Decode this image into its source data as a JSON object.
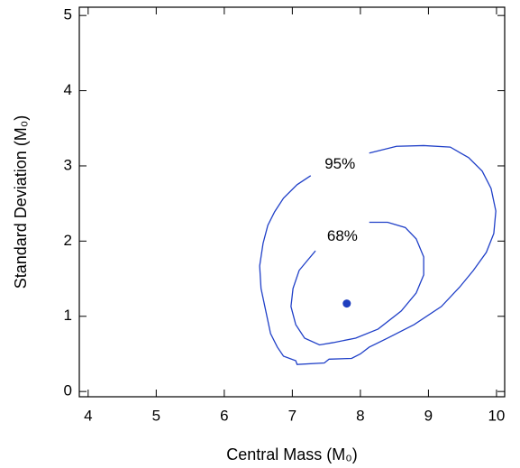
{
  "chart_data": {
    "type": "contour",
    "xlabel": "Central Mass (M₀)",
    "ylabel": "Standard Deviation (M₀)",
    "xlim": [
      3.87,
      10.12
    ],
    "ylim": [
      -0.07,
      5.11
    ],
    "xticks": [
      4,
      5,
      6,
      7,
      8,
      9,
      10
    ],
    "yticks": [
      0,
      1,
      2,
      3,
      4,
      5
    ],
    "series": [
      {
        "name": "95%",
        "color": "#2040c8",
        "x": [
          8.13,
          8.53,
          8.93,
          9.32,
          9.59,
          9.79,
          9.92,
          9.99,
          9.96,
          9.85,
          9.66,
          9.46,
          9.19,
          8.79,
          8.4,
          8.13,
          8.0,
          7.87,
          7.54,
          7.47,
          7.07,
          7.05,
          6.87,
          6.78,
          6.68,
          6.61,
          6.54,
          6.52,
          6.57,
          6.64,
          6.74,
          6.87,
          7.07,
          7.27
        ],
        "values": [
          3.17,
          3.26,
          3.27,
          3.25,
          3.11,
          2.93,
          2.7,
          2.4,
          2.1,
          1.85,
          1.61,
          1.39,
          1.13,
          0.89,
          0.71,
          0.59,
          0.5,
          0.44,
          0.43,
          0.38,
          0.36,
          0.41,
          0.47,
          0.59,
          0.77,
          1.07,
          1.37,
          1.67,
          1.97,
          2.21,
          2.39,
          2.57,
          2.75,
          2.87
        ]
      },
      {
        "name": "68%",
        "color": "#2040c8",
        "x": [
          8.13,
          8.4,
          8.66,
          8.82,
          8.93,
          8.93,
          8.82,
          8.6,
          8.26,
          7.93,
          7.6,
          7.4,
          7.18,
          7.05,
          6.98,
          7.01,
          7.1,
          7.21,
          7.34
        ],
        "values": [
          2.25,
          2.25,
          2.18,
          2.03,
          1.79,
          1.55,
          1.31,
          1.07,
          0.83,
          0.71,
          0.65,
          0.62,
          0.71,
          0.89,
          1.13,
          1.37,
          1.61,
          1.73,
          1.87
        ]
      }
    ],
    "points": {
      "color": "#1f3fbf",
      "x": [
        7.8
      ],
      "values": [
        1.17
      ]
    }
  }
}
